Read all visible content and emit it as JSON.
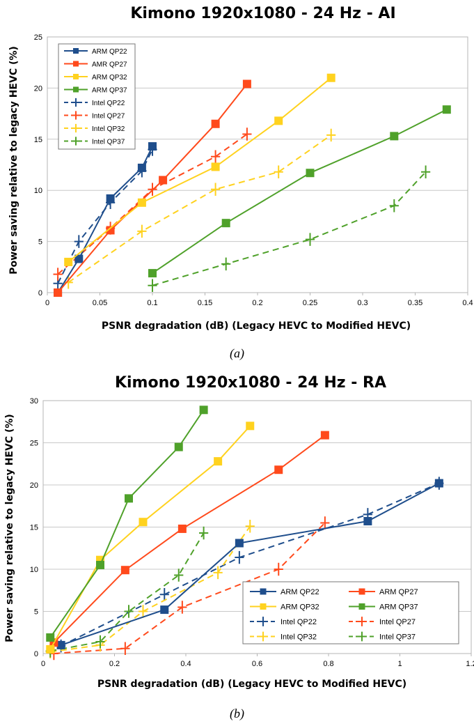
{
  "colors": {
    "ARM QP22": "#1f4e8c",
    "ARM QP32": "#ffd21f",
    "ARM QP37": "#4fa12a",
    "ARM/AMR QP27": "#ff4a1c",
    "grid": "#c8c8c8"
  },
  "chart_data": [
    {
      "type": "line",
      "title": "Kimono 1920x1080 - 24 Hz - AI",
      "xlabel": "PSNR degradation (dB) (Legacy HEVC to Modified HEVC)",
      "ylabel": "Power saving relative to legacy HEVC (%)",
      "xlim": [
        0,
        0.4
      ],
      "ylim": [
        0,
        25
      ],
      "xticks": [
        0,
        0.05,
        0.1,
        0.15,
        0.2,
        0.25,
        0.3,
        0.35,
        0.4
      ],
      "xtick_labels": [
        "0",
        "0.05",
        "0.1",
        "0.15",
        "0.2",
        "0.25",
        "0.3",
        "0.35",
        "0.4"
      ],
      "yticks": [
        0,
        5,
        10,
        15,
        20,
        25
      ],
      "ytick_labels": [
        "0",
        "5",
        "10",
        "15",
        "20",
        "25"
      ],
      "grid": "horizontal",
      "legend": "top-left",
      "legend_columns": 1,
      "caption": "(a)",
      "series": [
        {
          "name": "ARM QP22",
          "style": "solid-square",
          "color": "#1f4e8c",
          "points": [
            [
              0.01,
              0
            ],
            [
              0.03,
              3.3
            ],
            [
              0.06,
              9.2
            ],
            [
              0.09,
              12.2
            ],
            [
              0.1,
              14.3
            ]
          ]
        },
        {
          "name": "AMR QP27",
          "style": "solid-square",
          "color": "#ff4a1c",
          "points": [
            [
              0.01,
              0
            ],
            [
              0.06,
              6.1
            ],
            [
              0.11,
              11
            ],
            [
              0.16,
              16.5
            ],
            [
              0.19,
              20.4
            ]
          ]
        },
        {
          "name": "ARM QP32",
          "style": "solid-square",
          "color": "#ffd21f",
          "points": [
            [
              0.02,
              3
            ],
            [
              0.09,
              8.8
            ],
            [
              0.16,
              12.3
            ],
            [
              0.22,
              16.8
            ],
            [
              0.27,
              21
            ]
          ]
        },
        {
          "name": "ARM QP37",
          "style": "solid-square",
          "color": "#4fa12a",
          "points": [
            [
              0.1,
              1.9
            ],
            [
              0.17,
              6.8
            ],
            [
              0.25,
              11.7
            ],
            [
              0.33,
              15.3
            ],
            [
              0.38,
              17.9
            ]
          ]
        },
        {
          "name": "Intel QP22",
          "style": "dashed-plus",
          "color": "#1f4e8c",
          "points": [
            [
              0.01,
              0.9
            ],
            [
              0.03,
              5
            ],
            [
              0.06,
              8.8
            ],
            [
              0.09,
              11.9
            ],
            [
              0.1,
              14
            ]
          ]
        },
        {
          "name": "Intel QP27",
          "style": "dashed-plus",
          "color": "#ff4a1c",
          "points": [
            [
              0.01,
              1.8
            ],
            [
              0.06,
              6.3
            ],
            [
              0.1,
              10.1
            ],
            [
              0.16,
              13.3
            ],
            [
              0.19,
              15.5
            ]
          ]
        },
        {
          "name": "Intel QP32",
          "style": "dashed-plus",
          "color": "#ffd21f",
          "points": [
            [
              0.02,
              1
            ],
            [
              0.09,
              6
            ],
            [
              0.16,
              10.1
            ],
            [
              0.22,
              11.8
            ],
            [
              0.27,
              15.4
            ]
          ]
        },
        {
          "name": "Intel QP37",
          "style": "dashed-plus",
          "color": "#4fa12a",
          "points": [
            [
              0.1,
              0.7
            ],
            [
              0.17,
              2.8
            ],
            [
              0.25,
              5.2
            ],
            [
              0.33,
              8.5
            ],
            [
              0.36,
              11.8
            ]
          ]
        }
      ]
    },
    {
      "type": "line",
      "title": "Kimono 1920x1080 - 24 Hz - RA",
      "xlabel": "PSNR degradation (dB) (Legacy HEVC to Modified HEVC)",
      "ylabel": "Power saving relative to legacy HEVC (%)",
      "xlim": [
        0,
        1.2
      ],
      "ylim": [
        0,
        30
      ],
      "xticks": [
        0,
        0.2,
        0.4,
        0.6,
        0.8,
        1,
        1.2
      ],
      "xtick_labels": [
        "0",
        "0.2",
        "0.4",
        "0.6",
        "0.8",
        "1",
        "1.2"
      ],
      "yticks": [
        0,
        5,
        10,
        15,
        20,
        25,
        30
      ],
      "ytick_labels": [
        "0",
        "5",
        "10",
        "15",
        "20",
        "25",
        "30"
      ],
      "grid": "horizontal",
      "legend": "bottom-right",
      "legend_columns": 2,
      "caption": "(b)",
      "series": [
        {
          "name": "ARM QP22",
          "style": "solid-square",
          "color": "#1f4e8c",
          "points": [
            [
              0.05,
              1
            ],
            [
              0.34,
              5.2
            ],
            [
              0.55,
              13.1
            ],
            [
              0.91,
              15.7
            ],
            [
              1.11,
              20.2
            ]
          ]
        },
        {
          "name": "ARM QP27",
          "style": "solid-square",
          "color": "#ff4a1c",
          "points": [
            [
              0.03,
              1.3
            ],
            [
              0.23,
              9.9
            ],
            [
              0.39,
              14.8
            ],
            [
              0.66,
              21.8
            ],
            [
              0.79,
              25.9
            ]
          ]
        },
        {
          "name": "ARM QP32",
          "style": "solid-square",
          "color": "#ffd21f",
          "points": [
            [
              0.02,
              0.5
            ],
            [
              0.16,
              11.1
            ],
            [
              0.28,
              15.6
            ],
            [
              0.49,
              22.8
            ],
            [
              0.58,
              27
            ]
          ]
        },
        {
          "name": "ARM QP37",
          "style": "solid-square",
          "color": "#4fa12a",
          "points": [
            [
              0.02,
              1.9
            ],
            [
              0.16,
              10.5
            ],
            [
              0.24,
              18.4
            ],
            [
              0.38,
              24.5
            ],
            [
              0.45,
              28.9
            ]
          ]
        },
        {
          "name": "Intel QP22",
          "style": "dashed-plus",
          "color": "#1f4e8c",
          "points": [
            [
              0.05,
              0.9
            ],
            [
              0.34,
              7
            ],
            [
              0.55,
              11.4
            ],
            [
              0.91,
              16.5
            ],
            [
              1.11,
              20.2
            ]
          ]
        },
        {
          "name": "Intel QP27",
          "style": "dashed-plus",
          "color": "#ff4a1c",
          "points": [
            [
              0.03,
              0
            ],
            [
              0.23,
              0.6
            ],
            [
              0.39,
              5.5
            ],
            [
              0.66,
              10
            ],
            [
              0.79,
              15.5
            ]
          ]
        },
        {
          "name": "Intel QP32",
          "style": "dashed-plus",
          "color": "#ffd21f",
          "points": [
            [
              0.02,
              0.2
            ],
            [
              0.16,
              1
            ],
            [
              0.28,
              5
            ],
            [
              0.49,
              9.6
            ],
            [
              0.58,
              15.1
            ]
          ]
        },
        {
          "name": "Intel QP37",
          "style": "dashed-plus",
          "color": "#4fa12a",
          "points": [
            [
              0.02,
              0.3
            ],
            [
              0.16,
              1.4
            ],
            [
              0.24,
              5
            ],
            [
              0.38,
              9.3
            ],
            [
              0.45,
              14.3
            ]
          ]
        }
      ]
    }
  ]
}
